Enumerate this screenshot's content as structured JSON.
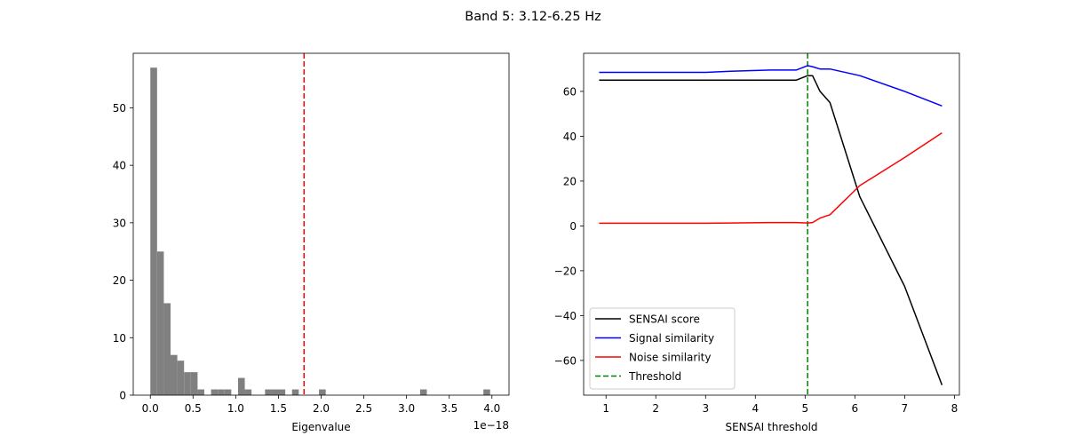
{
  "figure": {
    "suptitle": "Band 5: 3.12-6.25 Hz"
  },
  "chart_data": [
    {
      "type": "histogram",
      "xlabel": "Eigenvalue",
      "x_offset_label": "1e−18",
      "xlim": [
        -0.2,
        4.2
      ],
      "ylim": [
        0,
        59.5
      ],
      "xticks": [
        0.0,
        0.5,
        1.0,
        1.5,
        2.0,
        2.5,
        3.0,
        3.5,
        4.0
      ],
      "xtick_labels": [
        "0.0",
        "0.5",
        "1.0",
        "1.5",
        "2.0",
        "2.5",
        "3.0",
        "3.5",
        "4.0"
      ],
      "yticks": [
        0,
        10,
        20,
        30,
        40,
        50
      ],
      "ytick_labels": [
        "0",
        "10",
        "20",
        "30",
        "40",
        "50"
      ],
      "bin_width": 0.079,
      "bins": [
        {
          "x": 0.0,
          "count": 57
        },
        {
          "x": 0.079,
          "count": 25
        },
        {
          "x": 0.158,
          "count": 16
        },
        {
          "x": 0.237,
          "count": 7
        },
        {
          "x": 0.316,
          "count": 6
        },
        {
          "x": 0.395,
          "count": 4
        },
        {
          "x": 0.474,
          "count": 4
        },
        {
          "x": 0.553,
          "count": 1
        },
        {
          "x": 0.711,
          "count": 1
        },
        {
          "x": 0.79,
          "count": 1
        },
        {
          "x": 0.869,
          "count": 1
        },
        {
          "x": 1.027,
          "count": 3
        },
        {
          "x": 1.106,
          "count": 1
        },
        {
          "x": 1.343,
          "count": 1
        },
        {
          "x": 1.422,
          "count": 1
        },
        {
          "x": 1.501,
          "count": 1
        },
        {
          "x": 1.659,
          "count": 1
        },
        {
          "x": 1.975,
          "count": 1
        },
        {
          "x": 3.159,
          "count": 1
        },
        {
          "x": 3.9,
          "count": 1
        }
      ],
      "bar_color": "#808080",
      "threshold_x": 1.8,
      "threshold_color": "#ff0000"
    },
    {
      "type": "line",
      "xlabel": "SENSAI threshold",
      "xlim": [
        0.55,
        8.1
      ],
      "ylim": [
        -75.5,
        77
      ],
      "xticks": [
        1,
        2,
        3,
        4,
        5,
        6,
        7,
        8
      ],
      "xtick_labels": [
        "1",
        "2",
        "3",
        "4",
        "5",
        "6",
        "7",
        "8"
      ],
      "yticks": [
        -60,
        -40,
        -20,
        0,
        20,
        40,
        60
      ],
      "ytick_labels": [
        "−60",
        "−40",
        "−20",
        "0",
        "20",
        "40",
        "60"
      ],
      "series": [
        {
          "name": "SENSAI score",
          "color": "#000000",
          "x": [
            0.86,
            1.5,
            2.0,
            3.0,
            3.5,
            4.3,
            4.82,
            5.05,
            5.15,
            5.3,
            5.5,
            6.1,
            7.0,
            7.75
          ],
          "y": [
            65,
            65,
            65,
            65,
            65,
            65,
            65,
            67,
            67,
            60,
            55,
            13,
            -27,
            -71
          ]
        },
        {
          "name": "Signal similarity",
          "color": "#0000ff",
          "x": [
            0.86,
            1.5,
            2.0,
            3.0,
            3.5,
            4.3,
            4.82,
            5.05,
            5.15,
            5.3,
            5.5,
            6.1,
            7.0,
            7.75
          ],
          "y": [
            68.5,
            68.5,
            68.5,
            68.5,
            69,
            69.5,
            69.5,
            71.5,
            71,
            70,
            70,
            67,
            60,
            53.5
          ]
        },
        {
          "name": "Noise similarity",
          "color": "#ff0000",
          "x": [
            0.86,
            1.5,
            2.0,
            3.0,
            3.5,
            4.3,
            4.82,
            5.05,
            5.15,
            5.3,
            5.5,
            6.1,
            7.0,
            7.75
          ],
          "y": [
            1.2,
            1.2,
            1.2,
            1.2,
            1.3,
            1.5,
            1.5,
            1.3,
            1.5,
            3.5,
            5,
            18,
            30.5,
            41.5
          ]
        }
      ],
      "threshold": {
        "name": "Threshold",
        "x": 5.05,
        "color": "#008000"
      },
      "legend_position": "lower-left"
    }
  ]
}
